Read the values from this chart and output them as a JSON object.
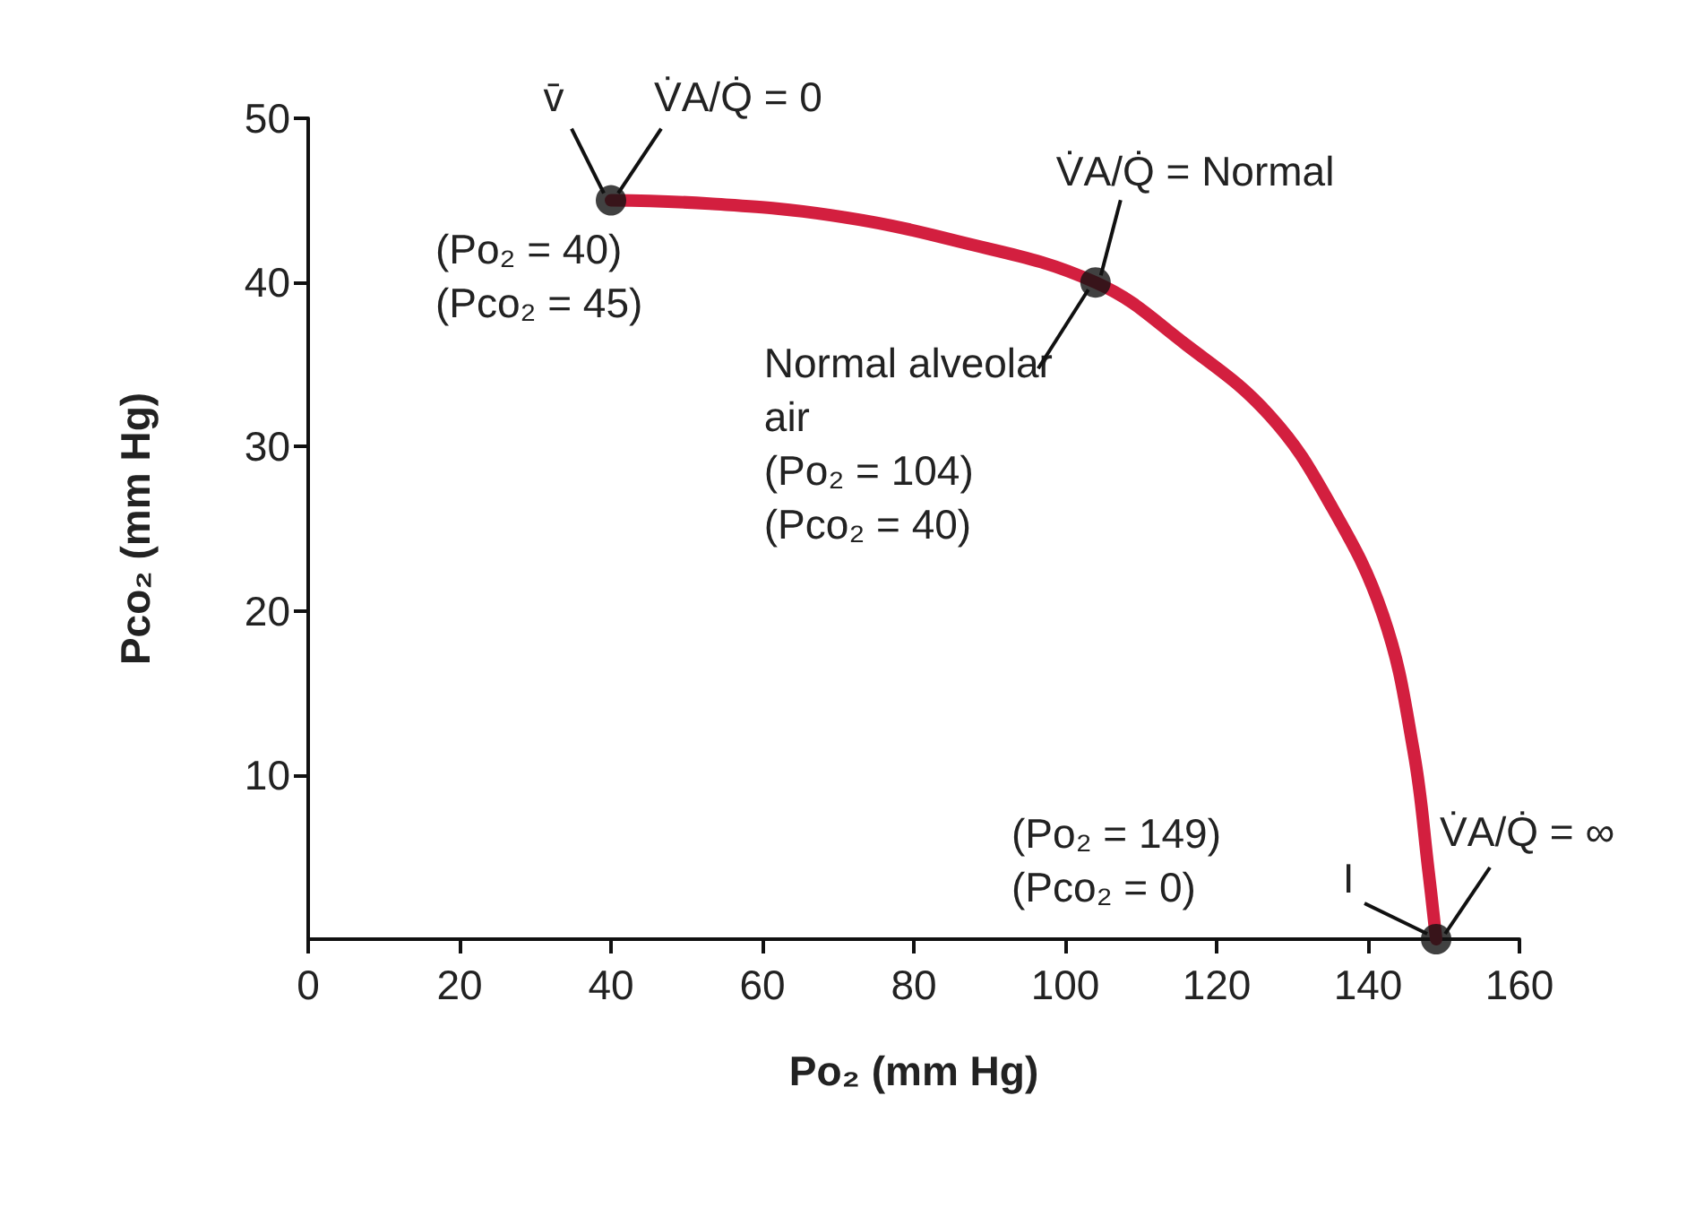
{
  "chart_data": {
    "type": "line",
    "xlabel": "Po₂ (mm Hg)",
    "ylabel": "Pco₂ (mm Hg)",
    "xlim": [
      0,
      160
    ],
    "xticks": [
      0,
      20,
      40,
      60,
      80,
      100,
      120,
      140,
      160
    ],
    "ylim": [
      0,
      50
    ],
    "yticks": [
      10,
      20,
      30,
      40,
      50
    ],
    "series": [
      {
        "color": "#d31f3f",
        "marker": "none",
        "x": [
          40,
          53,
          69,
          85,
          104,
          116,
          127,
          135,
          142,
          146,
          148,
          149
        ],
        "values": [
          45,
          44.8,
          44.1,
          42.6,
          40,
          36.2,
          31.9,
          26.5,
          19.7,
          11.5,
          4.1,
          0
        ]
      },
      {
        "type": "scatter",
        "color": "#111111",
        "marker": "circle",
        "x": [
          40,
          104,
          149
        ],
        "values": [
          45,
          40,
          0
        ]
      }
    ],
    "annotations": [
      {
        "text": "v̄",
        "x": 40,
        "y": 45
      },
      {
        "text": "V̇A/Q̇ = 0",
        "x": 40,
        "y": 45
      },
      {
        "text": "(Po₂ = 40)\n(Pco₂ = 45)",
        "x": 40,
        "y": 45
      },
      {
        "text": "V̇A/Q̇ = Normal",
        "x": 104,
        "y": 40
      },
      {
        "text": "Normal alveolar\nair\n(Po₂ = 104)\n(Pco₂ = 40)",
        "x": 104,
        "y": 40
      },
      "(Po₂ = 149)\n(Pco₂ = 0)",
      {
        "text": "I",
        "x": 149,
        "y": 0
      },
      {
        "text": "V̇A/Q̇ = ∞",
        "x": 149,
        "y": 0
      }
    ]
  }
}
